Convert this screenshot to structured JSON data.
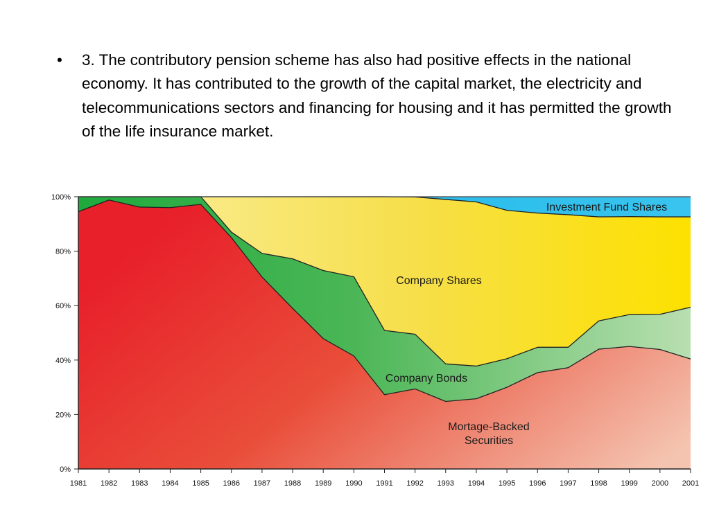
{
  "slide": {
    "bullet": "•",
    "text": "3. The contributory pension scheme has also had positive effects in the national economy. It has contributed to the growth of the capital market, the electricity and telecommunications sectors and financing for housing and it has permitted the growth of the life insurance market."
  },
  "chart_data": {
    "type": "area",
    "stacked": true,
    "x": [
      "1981",
      "1982",
      "1983",
      "1984",
      "1985",
      "1986",
      "1987",
      "1988",
      "1989",
      "1990",
      "1991",
      "1992",
      "1993",
      "1994",
      "1995",
      "1996",
      "1997",
      "1998",
      "1999",
      "2000",
      "2001"
    ],
    "ylim": [
      0,
      100
    ],
    "yticks": [
      "0%",
      "20%",
      "40%",
      "60%",
      "80%",
      "100%"
    ],
    "grid": false,
    "series": [
      {
        "name": "Mortage-Backed Securities",
        "color": "#e8332a",
        "values": [
          94.5,
          98.8,
          96.2,
          96.0,
          97.2,
          85.0,
          70.5,
          59.0,
          47.9,
          41.5,
          27.3,
          29.4,
          24.8,
          25.8,
          30.0,
          35.4,
          37.2,
          44.0,
          45.0,
          43.9,
          40.4
        ]
      },
      {
        "name": "Company Bonds",
        "color": "#2fae4a",
        "values": [
          5.5,
          1.2,
          3.8,
          4.0,
          2.8,
          2.0,
          8.7,
          18.2,
          25.0,
          29.1,
          23.6,
          20.1,
          13.8,
          12.0,
          10.5,
          9.3,
          7.5,
          10.4,
          11.7,
          12.9,
          19.0
        ]
      },
      {
        "name": "Company Shares",
        "color": "#f7e25a",
        "values": [
          0,
          0,
          0,
          0,
          0,
          13.0,
          20.8,
          22.8,
          27.1,
          29.4,
          49.1,
          50.4,
          60.4,
          60.3,
          54.5,
          49.3,
          48.7,
          38.2,
          36.0,
          35.8,
          33.2
        ]
      },
      {
        "name": "Investment Fund Shares",
        "color": "#20b8e6",
        "values": [
          0,
          0,
          0,
          0,
          0,
          0,
          0,
          0,
          0,
          0,
          0,
          0.1,
          1.0,
          1.9,
          5.0,
          6.0,
          6.6,
          7.4,
          7.3,
          7.4,
          7.4
        ]
      }
    ],
    "annotations": [
      "Investment Fund Shares",
      "Company Shares",
      "Company Bonds",
      "Mortage-Backed Securities"
    ]
  }
}
